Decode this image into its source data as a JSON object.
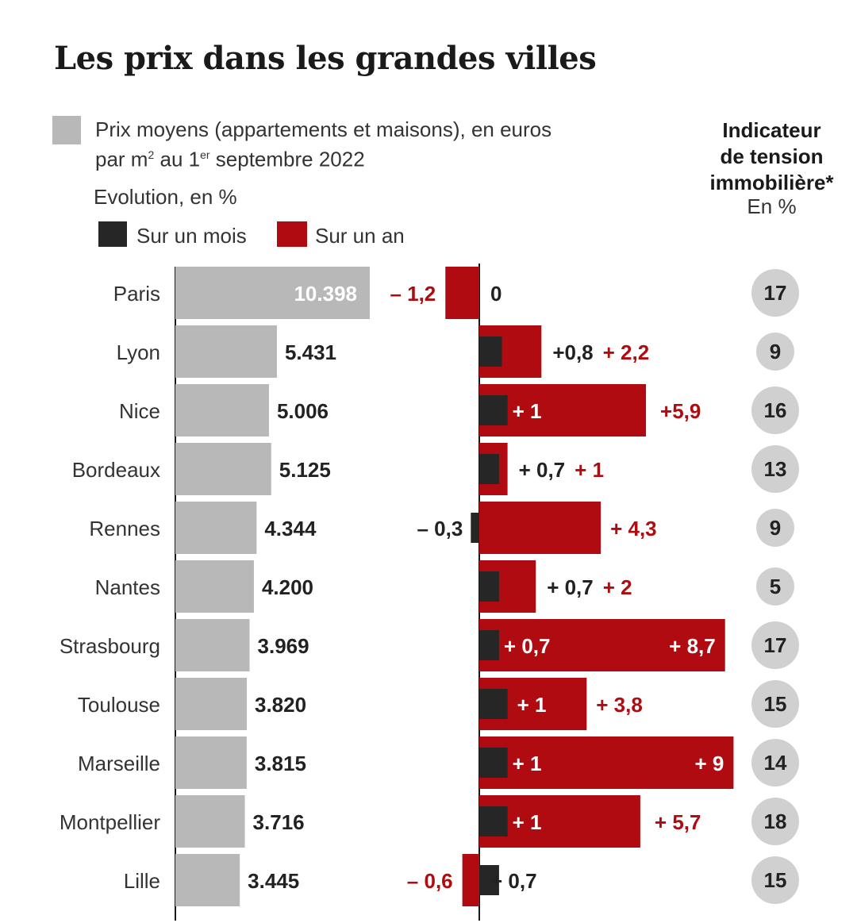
{
  "title": "Les prix dans les grandes villes",
  "legend": {
    "price_line1": "Prix moyens (appartements et maisons), en euros",
    "price_line2_pre": "par m",
    "price_sup1": "2",
    "price_mid": " au 1",
    "price_sup2": "er",
    "price_post": " septembre 2022",
    "evolution_label": "Evolution, en %",
    "month_label": "Sur un mois",
    "year_label": "Sur un an"
  },
  "tension": {
    "heading_lines": [
      "Indicateur",
      "de tension",
      "immobilière*"
    ],
    "unit": "En %"
  },
  "colors": {
    "price_bar": "#b9b8b8",
    "month": "#262626",
    "year": "#b00b10",
    "circle": "#d0d0d0",
    "axis": "#1a1a1a"
  },
  "chart_data": {
    "type": "bar",
    "categories": [
      "Paris",
      "Lyon",
      "Nice",
      "Bordeaux",
      "Rennes",
      "Nantes",
      "Strasbourg",
      "Toulouse",
      "Marseille",
      "Montpellier",
      "Lille"
    ],
    "prices": [
      10398,
      5431,
      5006,
      5125,
      4344,
      4200,
      3969,
      3820,
      3815,
      3716,
      3445
    ],
    "price_labels": [
      "10.398",
      "5.431",
      "5.006",
      "5.125",
      "4.344",
      "4.200",
      "3.969",
      "3.820",
      "3.815",
      "3.716",
      "3.445"
    ],
    "series": [
      {
        "name": "Sur un mois",
        "values": [
          0,
          0.8,
          1,
          0.7,
          -0.3,
          0.7,
          0.7,
          1,
          1,
          1,
          0.7
        ],
        "labels": [
          "0",
          "+0,8",
          "+ 1",
          "+ 0,7",
          "– 0,3",
          "+ 0,7",
          "+ 0,7",
          "+ 1",
          "+ 1",
          "+ 1",
          "+ 0,7"
        ]
      },
      {
        "name": "Sur un an",
        "values": [
          -1.2,
          2.2,
          5.9,
          1,
          4.3,
          2,
          8.7,
          3.8,
          9,
          5.7,
          -0.6
        ],
        "labels": [
          "– 1,2",
          "+ 2,2",
          "+5,9",
          "+ 1",
          "+ 4,3",
          "+ 2",
          "+ 8,7",
          "+ 3,8",
          "+ 9",
          "+ 5,7",
          "– 0,6"
        ]
      }
    ],
    "tension_values": [
      17,
      9,
      16,
      13,
      9,
      5,
      17,
      15,
      14,
      18,
      15
    ]
  }
}
